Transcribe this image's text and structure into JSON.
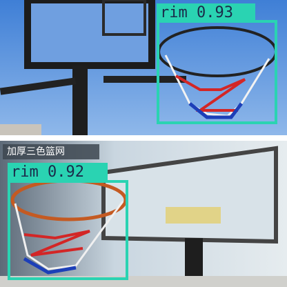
{
  "panels": [
    {
      "detections": [
        {
          "label": "rim 0.93"
        }
      ]
    },
    {
      "banner": "加厚三色篮网",
      "detections": [
        {
          "label": "rim 0.92"
        }
      ]
    }
  ]
}
